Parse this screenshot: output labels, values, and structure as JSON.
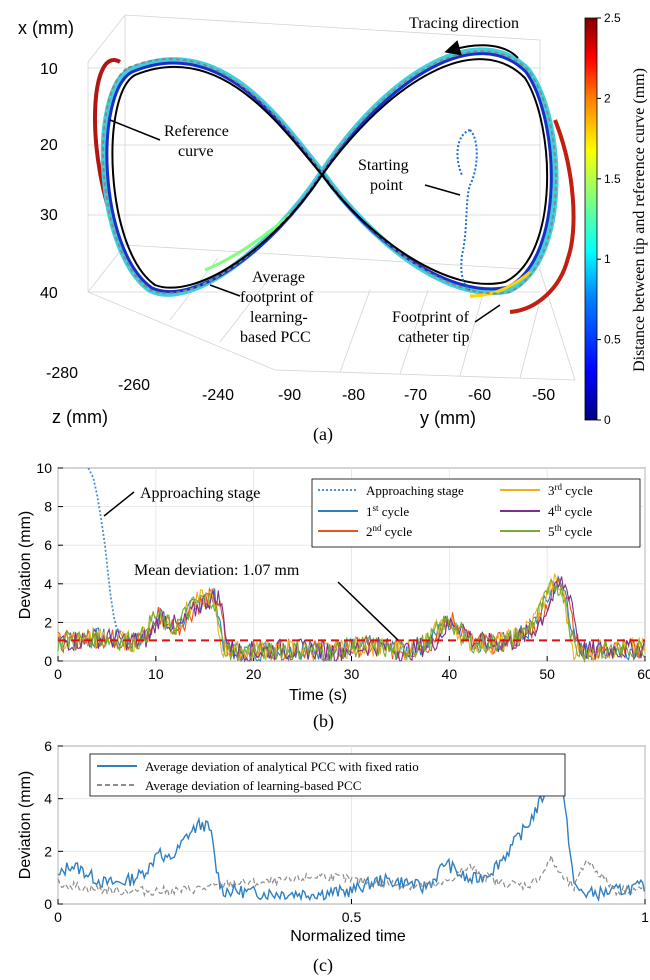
{
  "panels": [
    {
      "caption": "(a)"
    },
    {
      "caption": "(b)"
    },
    {
      "caption": "(c)"
    }
  ],
  "chart_data": [
    {
      "type": "line",
      "panel": "(a)",
      "xlabel": "z (mm)",
      "ylabel": "y (mm)",
      "zlabel": "x (mm)",
      "z_ticks": [
        "-280",
        "-260",
        "-240"
      ],
      "y_ticks": [
        "-90",
        "-80",
        "-70",
        "-60",
        "-50"
      ],
      "x_ticks": [
        "10",
        "20",
        "30",
        "40"
      ],
      "grid": true,
      "colorbar": {
        "label": "Distance between tip and reference curve (mm)",
        "range": [
          0,
          2.5
        ],
        "ticks": [
          "0",
          "0.5",
          "1",
          "1.5",
          "2",
          "2.5"
        ],
        "colors": [
          "#00007f",
          "#0000ff",
          "#007fff",
          "#00ffff",
          "#7fff7f",
          "#ffff00",
          "#ff7f00",
          "#ff0000",
          "#7f0000"
        ]
      },
      "annotations": {
        "tracing_direction": "Tracing direction",
        "reference_curve": [
          "Reference",
          "curve"
        ],
        "starting_point": [
          "Starting",
          "point"
        ],
        "average_footprint": [
          "Average",
          "footprint of",
          "learning-",
          "based PCC"
        ],
        "footprint_tip": [
          "Footprint of",
          "catheter tip"
        ]
      }
    },
    {
      "type": "line",
      "panel": "(b)",
      "xlabel": "Time (s)",
      "ylabel": "Deviation (mm)",
      "xlim": [
        0,
        60
      ],
      "ylim": [
        0,
        10
      ],
      "x_ticks": [
        "0",
        "10",
        "20",
        "30",
        "40",
        "50",
        "60"
      ],
      "y_ticks": [
        "0",
        "2",
        "4",
        "6",
        "8",
        "10"
      ],
      "legend_position": "top-right",
      "legend": [
        {
          "label": "Approaching stage",
          "color": "#4a90d0",
          "dash": "dotted"
        },
        {
          "label": "1",
          "sup": "st",
          "rest": " cycle",
          "color": "#2f7fc1",
          "dash": "solid"
        },
        {
          "label": "2",
          "sup": "nd",
          "rest": " cycle",
          "color": "#e6541a",
          "dash": "solid"
        },
        {
          "label": "3",
          "sup": "rd",
          "rest": " cycle",
          "color": "#edb120",
          "dash": "solid"
        },
        {
          "label": "4",
          "sup": "th",
          "rest": " cycle",
          "color": "#7e2f8e",
          "dash": "solid"
        },
        {
          "label": "5",
          "sup": "th",
          "rest": " cycle",
          "color": "#77ac30",
          "dash": "solid"
        }
      ],
      "annotations": {
        "approaching_stage": "Approaching stage",
        "mean_deviation": "Mean deviation: 1.07 mm"
      },
      "mean_deviation_value": 1.07,
      "approaching_series": {
        "x": [
          3.1,
          3.3,
          3.6,
          4.0,
          4.4,
          4.8,
          5.1,
          5.4,
          5.7,
          6.0,
          6.3,
          6.6
        ],
        "y": [
          10,
          9.8,
          9.5,
          8.6,
          7.4,
          6.0,
          4.6,
          3.3,
          2.3,
          1.7,
          1.5,
          1.6
        ]
      },
      "cycle_profile": {
        "x": [
          0,
          2,
          4,
          6,
          8,
          9,
          10,
          11,
          12,
          13,
          14,
          15,
          16,
          16.5,
          17,
          18,
          20,
          22,
          25,
          28,
          30,
          32,
          34,
          35,
          36,
          38,
          39,
          40,
          41,
          42,
          44,
          46,
          48,
          49,
          50,
          51,
          52,
          52.5,
          53,
          54,
          56,
          58,
          60
        ],
        "y": [
          1.0,
          1.1,
          1.2,
          1.1,
          1.0,
          1.3,
          2.4,
          2.0,
          1.7,
          2.3,
          2.9,
          3.2,
          3.3,
          2.2,
          0.7,
          0.5,
          0.5,
          0.6,
          0.6,
          0.5,
          0.7,
          0.8,
          0.6,
          0.5,
          0.6,
          1.0,
          1.6,
          2.1,
          1.7,
          1.0,
          0.9,
          1.0,
          1.5,
          2.2,
          3.2,
          4.1,
          3.4,
          1.7,
          0.6,
          0.5,
          0.6,
          0.6,
          0.7
        ]
      }
    },
    {
      "type": "line",
      "panel": "(c)",
      "xlabel": "Normalized time",
      "ylabel": "Deviation (mm)",
      "xlim": [
        0,
        1
      ],
      "ylim": [
        0,
        6
      ],
      "x_ticks": [
        "0",
        "0.5",
        "1"
      ],
      "y_ticks": [
        "0",
        "2",
        "4",
        "6"
      ],
      "legend_position": "top",
      "series": [
        {
          "name": "Average deviation of analytical PCC with fixed ratio",
          "color": "#2f7fc1",
          "dash": "solid",
          "x": [
            0,
            0.02,
            0.04,
            0.06,
            0.08,
            0.1,
            0.12,
            0.14,
            0.16,
            0.17,
            0.18,
            0.2,
            0.22,
            0.24,
            0.25,
            0.26,
            0.27,
            0.28,
            0.3,
            0.35,
            0.4,
            0.45,
            0.5,
            0.52,
            0.55,
            0.6,
            0.62,
            0.64,
            0.66,
            0.68,
            0.7,
            0.72,
            0.74,
            0.76,
            0.78,
            0.8,
            0.82,
            0.84,
            0.85,
            0.86,
            0.87,
            0.88,
            0.9,
            0.92,
            0.95,
            0.98,
            1.0
          ],
          "y": [
            1.0,
            1.5,
            1.3,
            1.0,
            0.8,
            0.8,
            0.9,
            1.1,
            1.5,
            2.2,
            1.6,
            1.9,
            2.6,
            3.0,
            3.0,
            2.8,
            1.3,
            0.5,
            0.5,
            0.4,
            0.4,
            0.4,
            0.5,
            0.7,
            0.9,
            0.8,
            0.6,
            0.9,
            1.6,
            1.2,
            0.9,
            1.0,
            1.3,
            1.8,
            2.4,
            3.0,
            3.8,
            4.8,
            5.0,
            4.2,
            2.5,
            0.6,
            0.4,
            0.4,
            0.5,
            0.6,
            0.7
          ]
        },
        {
          "name": "Average deviation of learning-based PCC",
          "color": "#8c8c8c",
          "dash": "dashed",
          "x": [
            0,
            0.05,
            0.1,
            0.15,
            0.2,
            0.25,
            0.3,
            0.35,
            0.4,
            0.45,
            0.5,
            0.55,
            0.6,
            0.65,
            0.7,
            0.75,
            0.8,
            0.82,
            0.84,
            0.86,
            0.88,
            0.9,
            0.95,
            1.0
          ],
          "y": [
            0.8,
            0.6,
            0.5,
            0.5,
            0.5,
            0.6,
            0.8,
            0.8,
            0.9,
            1.1,
            0.9,
            0.8,
            0.7,
            0.7,
            1.4,
            0.8,
            0.7,
            1.0,
            1.7,
            1.0,
            0.6,
            1.7,
            0.5,
            0.6
          ]
        }
      ]
    }
  ]
}
